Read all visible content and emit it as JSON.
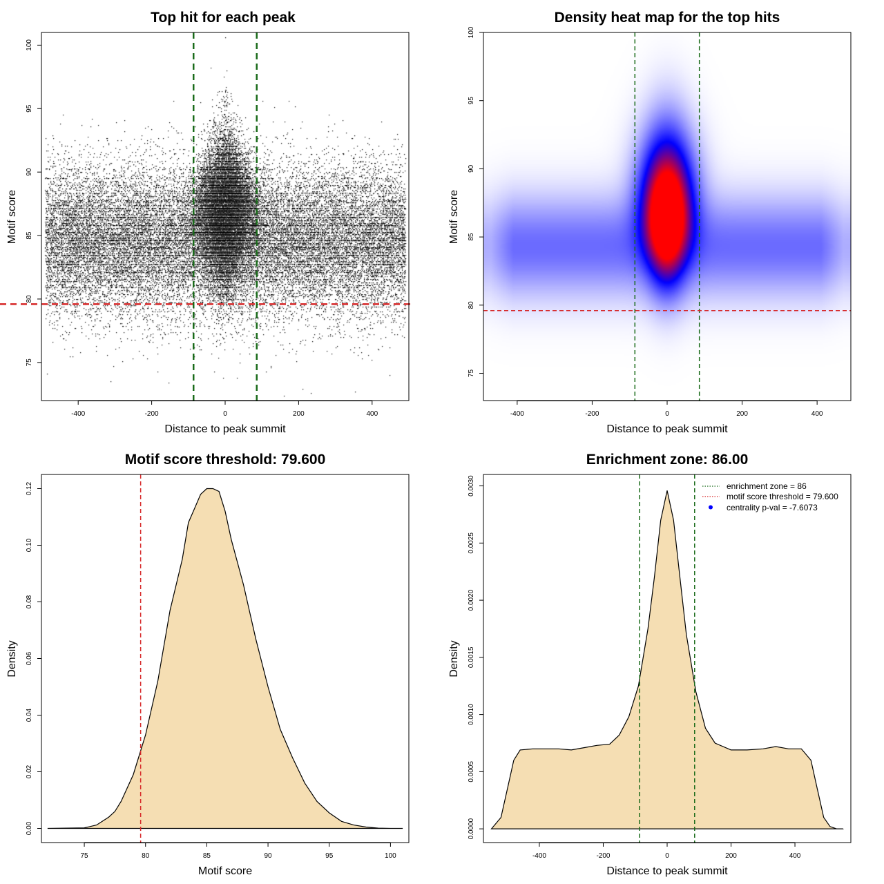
{
  "colors": {
    "threshold_line": "#d62728",
    "zone_line": "#1a6b1a",
    "density_fill": "#f5deb3",
    "heat_low": "#ffffff",
    "heat_mid": "#0000ff",
    "heat_high": "#ff0000",
    "points": "#000000"
  },
  "chart_data": [
    {
      "id": "scatter",
      "type": "scatter",
      "title": "Top hit for each peak",
      "xlabel": "Distance to peak summit",
      "ylabel": "Motif score",
      "xlim": [
        -500,
        500
      ],
      "ylim": [
        72,
        101
      ],
      "xticks": [
        -400,
        -200,
        0,
        200,
        400
      ],
      "yticks": [
        75,
        80,
        85,
        90,
        95,
        100
      ],
      "vlines": [
        -86,
        86
      ],
      "hline": 79.6,
      "description_of_points": "dense cloud of top motif hits; background scores centered near 84.5 over -490..490, with a central enrichment peak reaching ~100 near 0"
    },
    {
      "id": "heatmap",
      "type": "heatmap",
      "title": "Density heat map for the top hits",
      "xlabel": "Distance to peak summit",
      "ylabel": "Motif score",
      "xlim": [
        -490,
        490
      ],
      "ylim": [
        73,
        100
      ],
      "xticks": [
        -400,
        -200,
        0,
        200,
        400
      ],
      "yticks": [
        75,
        80,
        85,
        90,
        95,
        100
      ],
      "vlines": [
        -86,
        86
      ],
      "hline": 79.6,
      "hotspot": {
        "x": 0,
        "y": 86.5
      }
    },
    {
      "id": "score-density",
      "type": "area",
      "title": "Motif score threshold: 79.600",
      "xlabel": "Motif score",
      "ylabel": "Density",
      "xlim": [
        71.5,
        101.5
      ],
      "ylim": [
        -0.005,
        0.125
      ],
      "xticks": [
        75,
        80,
        85,
        90,
        95,
        100
      ],
      "yticks": [
        0.0,
        0.02,
        0.04,
        0.06,
        0.08,
        0.1,
        0.12
      ],
      "ytick_labels": [
        "0.00",
        "0.02",
        "0.04",
        "0.06",
        "0.08",
        "0.10",
        "0.12"
      ],
      "vline": 79.6,
      "x": [
        72,
        75,
        76,
        77,
        77.5,
        78,
        79,
        80,
        81,
        82,
        83,
        83.5,
        84,
        84.5,
        85,
        85.5,
        86,
        86.5,
        87,
        88,
        89,
        90,
        91,
        92,
        93,
        94,
        95,
        96,
        97,
        98,
        99,
        100,
        101
      ],
      "y": [
        0.0,
        0.0002,
        0.0012,
        0.004,
        0.006,
        0.0095,
        0.019,
        0.033,
        0.052,
        0.077,
        0.095,
        0.108,
        0.113,
        0.118,
        0.12,
        0.12,
        0.119,
        0.112,
        0.102,
        0.086,
        0.067,
        0.05,
        0.035,
        0.025,
        0.016,
        0.0095,
        0.0055,
        0.0025,
        0.0012,
        0.0005,
        0.0001,
        0.0,
        0.0
      ]
    },
    {
      "id": "distance-density",
      "type": "area",
      "title": "Enrichment zone: 86.00",
      "xlabel": "Distance to peak summit",
      "ylabel": "Density",
      "xlim": [
        -575,
        575
      ],
      "ylim": [
        -0.00012,
        0.0031
      ],
      "xticks": [
        -400,
        -200,
        0,
        200,
        400
      ],
      "yticks": [
        0.0,
        0.0005,
        0.001,
        0.0015,
        0.002,
        0.0025,
        0.003
      ],
      "ytick_labels": [
        "0.0000",
        "0.0005",
        "0.0010",
        "0.0015",
        "0.0020",
        "0.0025",
        "0.0030"
      ],
      "vlines": [
        -86,
        86
      ],
      "x": [
        -550,
        -520,
        -500,
        -480,
        -460,
        -420,
        -380,
        -340,
        -300,
        -260,
        -220,
        -180,
        -150,
        -120,
        -90,
        -60,
        -40,
        -20,
        0,
        20,
        40,
        60,
        90,
        120,
        150,
        200,
        250,
        300,
        340,
        380,
        420,
        450,
        470,
        490,
        510,
        530,
        550
      ],
      "y": [
        0.0,
        0.0001,
        0.00035,
        0.0006,
        0.00069,
        0.0007,
        0.0007,
        0.0007,
        0.00069,
        0.00071,
        0.00073,
        0.00074,
        0.00082,
        0.00098,
        0.00125,
        0.00175,
        0.0022,
        0.0027,
        0.00296,
        0.0027,
        0.0022,
        0.0017,
        0.0012,
        0.00088,
        0.00075,
        0.00069,
        0.00069,
        0.0007,
        0.00072,
        0.0007,
        0.0007,
        0.0006,
        0.00035,
        0.0001,
        2e-05,
        0.0,
        0.0
      ],
      "legend": [
        {
          "label": "enrichment zone = 86",
          "style": "dotted-green"
        },
        {
          "label": "motif score threshold = 79.600",
          "style": "dotted-red"
        },
        {
          "label": "centrality p-val = -7.6073",
          "style": "blue-dot"
        }
      ]
    }
  ]
}
